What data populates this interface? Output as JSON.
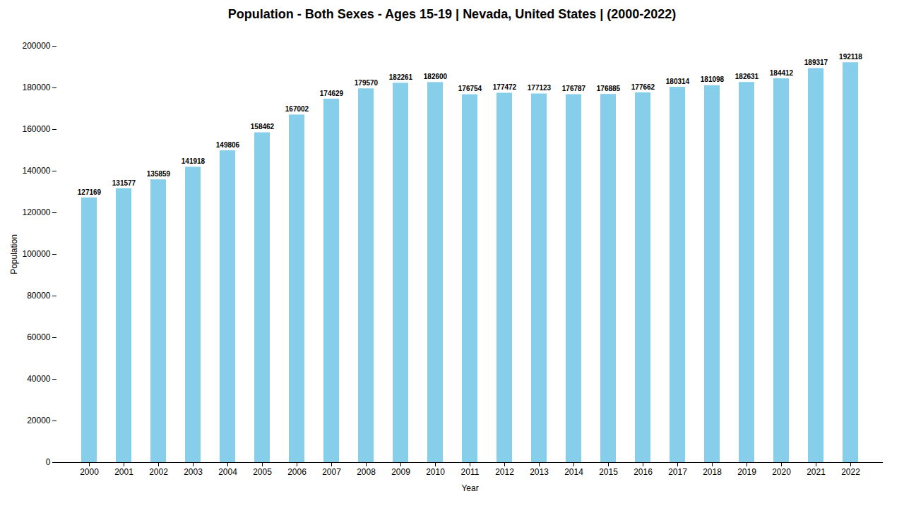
{
  "chart_data": {
    "type": "bar",
    "title": "Population - Both Sexes - Ages 15-19 | Nevada, United States |  (2000-2022)",
    "xlabel": "Year",
    "ylabel": "Population",
    "categories": [
      "2000",
      "2001",
      "2002",
      "2003",
      "2004",
      "2005",
      "2006",
      "2007",
      "2008",
      "2009",
      "2010",
      "2011",
      "2012",
      "2013",
      "2014",
      "2015",
      "2016",
      "2017",
      "2018",
      "2019",
      "2020",
      "2021",
      "2022"
    ],
    "values": [
      127169,
      131577,
      135859,
      141918,
      149806,
      158462,
      167002,
      174629,
      179570,
      182261,
      182600,
      176754,
      177472,
      177123,
      176787,
      176885,
      177662,
      180314,
      181098,
      182631,
      184412,
      189317,
      192118
    ],
    "color": "#87CEEB",
    "ylim": [
      0,
      200000
    ],
    "yticks": [
      0,
      20000,
      40000,
      60000,
      80000,
      100000,
      120000,
      140000,
      160000,
      180000,
      200000
    ],
    "grid": false,
    "data_labels": true
  }
}
